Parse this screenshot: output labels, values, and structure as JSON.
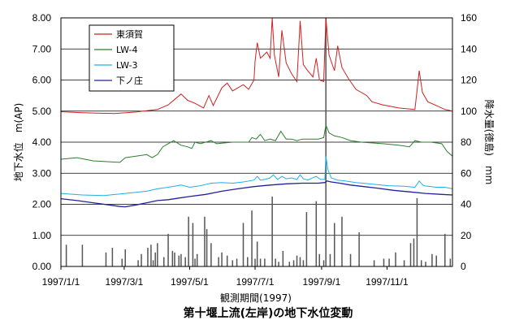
{
  "chart_data": {
    "type": "line",
    "title": "第十堰上流(左岸)の地下水位変動",
    "xlabel": "観測期間(1997)",
    "ylabel_left": "地下水位　m(AP)",
    "ylabel_right": "降水量(徳島)　mm",
    "ylim_left": [
      0,
      8
    ],
    "ylim_right": [
      0,
      160
    ],
    "yticks_left": [
      "0.00",
      "1.00",
      "2.00",
      "3.00",
      "4.00",
      "5.00",
      "6.00",
      "7.00",
      "8.00"
    ],
    "yticks_right": [
      "0",
      "20",
      "40",
      "60",
      "80",
      "100",
      "120",
      "140",
      "160"
    ],
    "xticks": [
      "1997/1/1",
      "1997/3/1",
      "1997/5/1",
      "1997/7/1",
      "1997/9/1",
      "1997/11/1"
    ],
    "xtick_days": [
      0,
      59,
      120,
      181,
      243,
      304
    ],
    "x_days": 365,
    "legend_position": "top-left",
    "grid": "horizontal",
    "series": [
      {
        "name": "東須賀",
        "color": "#cc2222",
        "points": [
          [
            0,
            4.98
          ],
          [
            20,
            4.95
          ],
          [
            50,
            4.92
          ],
          [
            70,
            4.97
          ],
          [
            90,
            5.05
          ],
          [
            100,
            5.2
          ],
          [
            112,
            5.55
          ],
          [
            118,
            5.35
          ],
          [
            125,
            5.25
          ],
          [
            133,
            5.1
          ],
          [
            138,
            5.5
          ],
          [
            142,
            5.18
          ],
          [
            150,
            5.75
          ],
          [
            155,
            5.9
          ],
          [
            160,
            5.65
          ],
          [
            170,
            5.85
          ],
          [
            175,
            5.7
          ],
          [
            180,
            6.0
          ],
          [
            181,
            6.6
          ],
          [
            183,
            7.2
          ],
          [
            186,
            6.7
          ],
          [
            189,
            6.8
          ],
          [
            192,
            6.9
          ],
          [
            195,
            6.7
          ],
          [
            197,
            8.0
          ],
          [
            199,
            6.8
          ],
          [
            203,
            6.1
          ],
          [
            206,
            7.6
          ],
          [
            210,
            6.55
          ],
          [
            215,
            6.2
          ],
          [
            220,
            5.95
          ],
          [
            223,
            7.9
          ],
          [
            226,
            6.5
          ],
          [
            230,
            6.3
          ],
          [
            235,
            6.1
          ],
          [
            238,
            6.7
          ],
          [
            241,
            6.0
          ],
          [
            245,
            5.95
          ],
          [
            247,
            8.0
          ],
          [
            250,
            6.8
          ],
          [
            255,
            6.3
          ],
          [
            258,
            7.1
          ],
          [
            262,
            6.4
          ],
          [
            268,
            6.05
          ],
          [
            275,
            5.7
          ],
          [
            285,
            5.5
          ],
          [
            290,
            5.3
          ],
          [
            300,
            5.2
          ],
          [
            315,
            5.1
          ],
          [
            330,
            5.05
          ],
          [
            334,
            6.3
          ],
          [
            337,
            5.6
          ],
          [
            342,
            5.3
          ],
          [
            350,
            5.18
          ],
          [
            358,
            5.05
          ],
          [
            365,
            5.0
          ]
        ]
      },
      {
        "name": "LW-4",
        "color": "#2e7d2e",
        "points": [
          [
            0,
            3.45
          ],
          [
            15,
            3.5
          ],
          [
            30,
            3.4
          ],
          [
            55,
            3.35
          ],
          [
            60,
            3.5
          ],
          [
            70,
            3.55
          ],
          [
            80,
            3.6
          ],
          [
            85,
            3.5
          ],
          [
            90,
            3.6
          ],
          [
            95,
            3.85
          ],
          [
            100,
            3.95
          ],
          [
            105,
            4.05
          ],
          [
            112,
            3.9
          ],
          [
            118,
            3.85
          ],
          [
            122,
            3.8
          ],
          [
            125,
            4.0
          ],
          [
            130,
            3.95
          ],
          [
            135,
            4.0
          ],
          [
            140,
            4.05
          ],
          [
            145,
            3.95
          ],
          [
            160,
            4.0
          ],
          [
            175,
            4.0
          ],
          [
            178,
            4.15
          ],
          [
            182,
            4.1
          ],
          [
            186,
            4.25
          ],
          [
            190,
            4.05
          ],
          [
            195,
            4.1
          ],
          [
            200,
            4.05
          ],
          [
            205,
            4.35
          ],
          [
            210,
            4.1
          ],
          [
            215,
            4.1
          ],
          [
            220,
            4.05
          ],
          [
            225,
            4.1
          ],
          [
            230,
            4.1
          ],
          [
            240,
            4.1
          ],
          [
            245,
            4.15
          ],
          [
            247,
            4.55
          ],
          [
            250,
            4.3
          ],
          [
            255,
            4.2
          ],
          [
            262,
            4.15
          ],
          [
            270,
            4.05
          ],
          [
            280,
            4.0
          ],
          [
            300,
            3.95
          ],
          [
            315,
            3.9
          ],
          [
            325,
            3.85
          ],
          [
            330,
            4.05
          ],
          [
            336,
            4.0
          ],
          [
            345,
            4.0
          ],
          [
            355,
            3.95
          ],
          [
            360,
            3.7
          ],
          [
            365,
            3.55
          ]
        ]
      },
      {
        "name": "LW-3",
        "color": "#1eb0e8",
        "points": [
          [
            0,
            2.35
          ],
          [
            20,
            2.3
          ],
          [
            40,
            2.28
          ],
          [
            60,
            2.35
          ],
          [
            80,
            2.42
          ],
          [
            90,
            2.5
          ],
          [
            100,
            2.55
          ],
          [
            112,
            2.62
          ],
          [
            120,
            2.55
          ],
          [
            130,
            2.6
          ],
          [
            140,
            2.68
          ],
          [
            150,
            2.7
          ],
          [
            160,
            2.68
          ],
          [
            170,
            2.72
          ],
          [
            180,
            2.78
          ],
          [
            183,
            2.9
          ],
          [
            186,
            2.78
          ],
          [
            190,
            2.8
          ],
          [
            195,
            2.85
          ],
          [
            198,
            2.95
          ],
          [
            202,
            2.8
          ],
          [
            206,
            2.9
          ],
          [
            210,
            2.82
          ],
          [
            215,
            2.85
          ],
          [
            220,
            2.8
          ],
          [
            223,
            2.95
          ],
          [
            226,
            2.82
          ],
          [
            230,
            2.78
          ],
          [
            238,
            2.9
          ],
          [
            242,
            2.8
          ],
          [
            246,
            2.8
          ],
          [
            247,
            3.55
          ],
          [
            249,
            3.1
          ],
          [
            252,
            2.85
          ],
          [
            258,
            2.78
          ],
          [
            265,
            2.75
          ],
          [
            275,
            2.7
          ],
          [
            290,
            2.65
          ],
          [
            305,
            2.6
          ],
          [
            320,
            2.58
          ],
          [
            330,
            2.55
          ],
          [
            334,
            2.75
          ],
          [
            338,
            2.6
          ],
          [
            350,
            2.55
          ],
          [
            358,
            2.55
          ],
          [
            365,
            2.5
          ]
        ]
      },
      {
        "name": "下ノ庄",
        "color": "#22229a",
        "points": [
          [
            0,
            2.18
          ],
          [
            15,
            2.12
          ],
          [
            30,
            2.05
          ],
          [
            45,
            1.98
          ],
          [
            55,
            1.93
          ],
          [
            60,
            1.92
          ],
          [
            70,
            1.98
          ],
          [
            80,
            2.05
          ],
          [
            90,
            2.12
          ],
          [
            100,
            2.15
          ],
          [
            110,
            2.2
          ],
          [
            120,
            2.25
          ],
          [
            135,
            2.32
          ],
          [
            150,
            2.42
          ],
          [
            165,
            2.5
          ],
          [
            180,
            2.57
          ],
          [
            195,
            2.62
          ],
          [
            210,
            2.66
          ],
          [
            225,
            2.68
          ],
          [
            240,
            2.68
          ],
          [
            246,
            2.7
          ],
          [
            248,
            2.75
          ],
          [
            252,
            2.72
          ],
          [
            260,
            2.68
          ],
          [
            270,
            2.62
          ],
          [
            280,
            2.58
          ],
          [
            295,
            2.52
          ],
          [
            310,
            2.45
          ],
          [
            325,
            2.4
          ],
          [
            340,
            2.35
          ],
          [
            355,
            2.32
          ],
          [
            365,
            2.3
          ]
        ]
      }
    ],
    "precipitation": {
      "name": "降水量(徳島)",
      "color": "#555555",
      "days": [
        5,
        20,
        42,
        48,
        57,
        60,
        72,
        75,
        81,
        84,
        86,
        88,
        90,
        96,
        100,
        104,
        106,
        110,
        112,
        116,
        119,
        123,
        125,
        127,
        134,
        136,
        140,
        147,
        150,
        155,
        160,
        164,
        170,
        174,
        178,
        181,
        183,
        186,
        190,
        197,
        200,
        203,
        207,
        213,
        217,
        220,
        223,
        226,
        229,
        238,
        241,
        245,
        247,
        251,
        255,
        262,
        270,
        278,
        292,
        301,
        306,
        312,
        320,
        326,
        329,
        332,
        336,
        340,
        346,
        350,
        358,
        363
      ],
      "mm": [
        14,
        14,
        9,
        12,
        5,
        11,
        4,
        8,
        12,
        14,
        4,
        9,
        15,
        6,
        21,
        10,
        9,
        7,
        8,
        6,
        32,
        28,
        5,
        8,
        32,
        24,
        15,
        6,
        9,
        7,
        4,
        5,
        28,
        6,
        36,
        5,
        16,
        5,
        5,
        45,
        5,
        3,
        10,
        3,
        4,
        7,
        6,
        4,
        35,
        42,
        8,
        4,
        160,
        8,
        28,
        32,
        8,
        22,
        4,
        5,
        5,
        9,
        4,
        15,
        18,
        44,
        4,
        3,
        8,
        7,
        21,
        5
      ]
    }
  }
}
